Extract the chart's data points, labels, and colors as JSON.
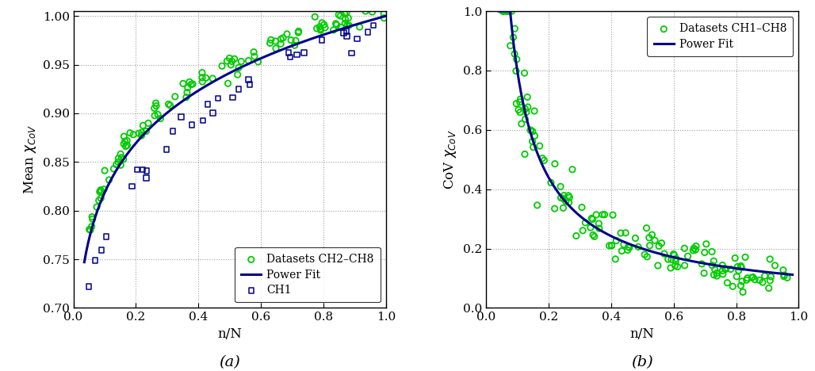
{
  "panel_a": {
    "title": "(a)",
    "xlabel": "n/N",
    "ylabel": "Mean $\\chi_{CoV}$",
    "xlim": [
      0,
      1.0
    ],
    "ylim": [
      0.7,
      1.005
    ],
    "yticks": [
      0.7,
      0.75,
      0.8,
      0.85,
      0.9,
      0.95,
      1.0
    ],
    "xticks": [
      0.0,
      0.2,
      0.4,
      0.6,
      0.8,
      1.0
    ],
    "fit_color": "#00008B",
    "fit_label": "Power Fit",
    "scatter_color": "#00CC00",
    "scatter_label": "Datasets CH2–CH8",
    "ch1_color": "#00008B",
    "ch1_label": "CH1",
    "fit_b": 0.087
  },
  "panel_b": {
    "title": "(b)",
    "xlabel": "n/N",
    "ylabel": "CoV $\\chi_{CoV}$",
    "xlim": [
      0,
      1.0
    ],
    "ylim": [
      0,
      1.0
    ],
    "yticks": [
      0.0,
      0.2,
      0.4,
      0.6,
      0.8,
      1.0
    ],
    "xticks": [
      0.0,
      0.2,
      0.4,
      0.6,
      0.8,
      1.0
    ],
    "fit_color": "#00008B",
    "fit_label": "Power Fit",
    "scatter_color": "#00CC00",
    "scatter_label": "Datasets CH1–CH8",
    "fit_a": 0.11,
    "fit_b": -0.861
  }
}
